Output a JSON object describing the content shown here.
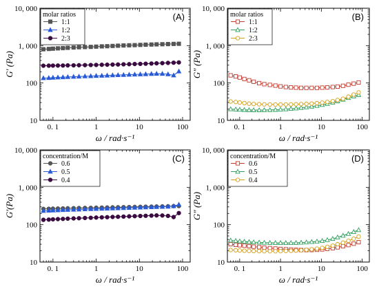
{
  "chart_data": [
    {
      "type": "line",
      "panel_label": "(A)",
      "ylabel": "G′ (Pa)",
      "xlabel": "ω / rad·s⁻¹",
      "xscale": "log",
      "yscale": "log",
      "xlim": [
        0.05,
        150
      ],
      "ylim": [
        10,
        10000
      ],
      "xticks": [
        0.1,
        1,
        10,
        100
      ],
      "xtick_labels": [
        "0. 1",
        "1",
        "10",
        "100"
      ],
      "yticks": [
        10,
        100,
        1000,
        10000
      ],
      "ytick_labels": [
        "10",
        "100",
        "1, 000",
        "10, 000"
      ],
      "legend_title": "molar ratios",
      "legend_position": "top-left",
      "series": [
        {
          "name": "1:1",
          "color": "#555555",
          "marker": "square",
          "filled": true,
          "x": [
            0.06,
            0.08,
            0.1,
            0.13,
            0.17,
            0.22,
            0.3,
            0.4,
            0.55,
            0.75,
            1,
            1.35,
            1.8,
            2.4,
            3.2,
            4.3,
            5.8,
            7.8,
            10.5,
            14,
            19,
            25,
            34,
            46,
            62,
            82
          ],
          "y": [
            800,
            815,
            830,
            845,
            860,
            875,
            890,
            905,
            915,
            925,
            940,
            955,
            965,
            980,
            995,
            1010,
            1020,
            1030,
            1045,
            1060,
            1070,
            1080,
            1090,
            1100,
            1110,
            1120
          ]
        },
        {
          "name": "1:2",
          "color": "#2a5bd7",
          "marker": "triangle",
          "filled": true,
          "x": [
            0.06,
            0.08,
            0.1,
            0.13,
            0.17,
            0.22,
            0.3,
            0.4,
            0.55,
            0.75,
            1,
            1.35,
            1.8,
            2.4,
            3.2,
            4.3,
            5.8,
            7.8,
            10.5,
            14,
            19,
            25,
            34,
            46,
            62,
            82
          ],
          "y": [
            135,
            137,
            139,
            141,
            143,
            145,
            147,
            149,
            151,
            153,
            155,
            157,
            159,
            161,
            163,
            165,
            167,
            169,
            171,
            173,
            175,
            177,
            176,
            172,
            160,
            205
          ]
        },
        {
          "name": "2:3",
          "color": "#3a0a40",
          "marker": "circle",
          "filled": true,
          "x": [
            0.06,
            0.08,
            0.1,
            0.13,
            0.17,
            0.22,
            0.3,
            0.4,
            0.55,
            0.75,
            1,
            1.35,
            1.8,
            2.4,
            3.2,
            4.3,
            5.8,
            7.8,
            10.5,
            14,
            19,
            25,
            34,
            46,
            62,
            82
          ],
          "y": [
            290,
            291,
            292,
            293,
            294,
            296,
            297,
            299,
            301,
            303,
            305,
            307,
            309,
            311,
            313,
            316,
            319,
            322,
            325,
            328,
            332,
            336,
            340,
            345,
            350,
            355
          ]
        }
      ]
    },
    {
      "type": "line",
      "panel_label": "(B)",
      "ylabel": "G″ (Pa)",
      "xlabel": "ω / rad·s⁻¹",
      "xscale": "log",
      "yscale": "log",
      "xlim": [
        0.05,
        150
      ],
      "ylim": [
        10,
        10000
      ],
      "xticks": [
        0.1,
        1,
        10,
        100
      ],
      "xtick_labels": [
        "0. 1",
        "1",
        "10",
        "100"
      ],
      "yticks": [
        10,
        100,
        1000,
        10000
      ],
      "ytick_labels": [
        "10",
        "100",
        "1, 000",
        "10, 000"
      ],
      "legend_title": "molar ratios",
      "legend_position": "top-left",
      "series": [
        {
          "name": "1:1",
          "color": "#c0392b",
          "marker": "square",
          "filled": false,
          "x": [
            0.06,
            0.08,
            0.1,
            0.13,
            0.17,
            0.22,
            0.3,
            0.4,
            0.55,
            0.75,
            1,
            1.35,
            1.8,
            2.4,
            3.2,
            4.3,
            5.8,
            7.8,
            10.5,
            14,
            19,
            25,
            34,
            46,
            62,
            82
          ],
          "y": [
            160,
            150,
            140,
            128,
            118,
            108,
            99,
            93,
            89,
            85,
            81,
            78,
            76,
            75,
            74,
            74,
            74,
            74,
            75,
            76,
            78,
            80,
            84,
            90,
            96,
            103
          ]
        },
        {
          "name": "1:2",
          "color": "#2e9e5b",
          "marker": "triangle",
          "filled": false,
          "x": [
            0.06,
            0.08,
            0.1,
            0.13,
            0.17,
            0.22,
            0.3,
            0.4,
            0.55,
            0.75,
            1,
            1.35,
            1.8,
            2.4,
            3.2,
            4.3,
            5.8,
            7.8,
            10.5,
            14,
            19,
            25,
            34,
            46,
            62,
            82
          ],
          "y": [
            20,
            19.7,
            19.4,
            19.1,
            18.9,
            18.8,
            18.8,
            18.9,
            19,
            19.2,
            19.5,
            19.9,
            20.4,
            21,
            21.7,
            22.5,
            23.5,
            24.6,
            26,
            27.8,
            30,
            32.8,
            36,
            40,
            44,
            48
          ]
        },
        {
          "name": "2:3",
          "color": "#d4a017",
          "marker": "circle",
          "filled": false,
          "x": [
            0.06,
            0.08,
            0.1,
            0.13,
            0.17,
            0.22,
            0.3,
            0.4,
            0.55,
            0.75,
            1,
            1.35,
            1.8,
            2.4,
            3.2,
            4.3,
            5.8,
            7.8,
            10.5,
            14,
            19,
            25,
            34,
            46,
            62,
            82
          ],
          "y": [
            32,
            31,
            30,
            29,
            28,
            27.5,
            27,
            26.8,
            26.6,
            26.5,
            26.5,
            26.6,
            26.8,
            27,
            27.3,
            27.7,
            28.2,
            28.9,
            29.8,
            31,
            32.8,
            35,
            38,
            43,
            49,
            56
          ]
        }
      ]
    },
    {
      "type": "line",
      "panel_label": "(C)",
      "ylabel": "G′(Pa)",
      "xlabel": "ω / rad·s⁻¹",
      "xscale": "log",
      "yscale": "log",
      "xlim": [
        0.05,
        150
      ],
      "ylim": [
        10,
        10000
      ],
      "xticks": [
        0.1,
        1,
        10,
        100
      ],
      "xtick_labels": [
        "0. 1",
        "1",
        "10",
        "100"
      ],
      "yticks": [
        10,
        100,
        1000,
        10000
      ],
      "ytick_labels": [
        "10",
        "100",
        "1, 000",
        "10, 000"
      ],
      "legend_title": "concentration/M",
      "legend_position": "top-left",
      "series": [
        {
          "name": "0.6",
          "color": "#555555",
          "marker": "circle",
          "filled": true,
          "x": [
            0.06,
            0.08,
            0.1,
            0.13,
            0.17,
            0.22,
            0.3,
            0.4,
            0.55,
            0.75,
            1,
            1.35,
            1.8,
            2.4,
            3.2,
            4.3,
            5.8,
            7.8,
            10.5,
            14,
            19,
            25,
            34,
            46,
            62,
            82
          ],
          "y": [
            265,
            267,
            269,
            271,
            273,
            275,
            277,
            279,
            281,
            283,
            285,
            287,
            289,
            291,
            293,
            295,
            297,
            299,
            301,
            303,
            305,
            307,
            309,
            311,
            313,
            315
          ]
        },
        {
          "name": "0.5",
          "color": "#2a5bd7",
          "marker": "triangle",
          "filled": true,
          "x": [
            0.06,
            0.08,
            0.1,
            0.13,
            0.17,
            0.22,
            0.3,
            0.4,
            0.55,
            0.75,
            1,
            1.35,
            1.8,
            2.4,
            3.2,
            4.3,
            5.8,
            7.8,
            10.5,
            14,
            19,
            25,
            34,
            46,
            62,
            82
          ],
          "y": [
            235,
            238,
            241,
            244,
            247,
            250,
            253,
            256,
            259,
            262,
            265,
            268,
            271,
            274,
            277,
            280,
            283,
            286,
            289,
            292,
            295,
            298,
            301,
            305,
            315,
            345
          ]
        },
        {
          "name": "0.4",
          "color": "#3a0a40",
          "marker": "circle",
          "filled": true,
          "x": [
            0.06,
            0.08,
            0.1,
            0.13,
            0.17,
            0.22,
            0.3,
            0.4,
            0.55,
            0.75,
            1,
            1.35,
            1.8,
            2.4,
            3.2,
            4.3,
            5.8,
            7.8,
            10.5,
            14,
            19,
            25,
            34,
            46,
            62,
            82
          ],
          "y": [
            135,
            137,
            139,
            141,
            143,
            145,
            147,
            149,
            151,
            153,
            155,
            157,
            159,
            161,
            163,
            165,
            167,
            169,
            171,
            173,
            175,
            177,
            176,
            172,
            160,
            205
          ]
        }
      ]
    },
    {
      "type": "line",
      "panel_label": "(D)",
      "ylabel": "G″ (Pa)",
      "xlabel": "ω / rad·s⁻¹",
      "xscale": "log",
      "yscale": "log",
      "xlim": [
        0.05,
        150
      ],
      "ylim": [
        10,
        10000
      ],
      "xticks": [
        0.1,
        1,
        10,
        100
      ],
      "xtick_labels": [
        "0. 1",
        "1",
        "10",
        "100"
      ],
      "yticks": [
        10,
        100,
        1000,
        10000
      ],
      "ytick_labels": [
        "10",
        "100",
        "1, 000",
        "10, 000"
      ],
      "legend_title": "concentration/M",
      "legend_position": "top-left",
      "series": [
        {
          "name": "0.6",
          "color": "#c0392b",
          "marker": "square",
          "filled": false,
          "x": [
            0.06,
            0.08,
            0.1,
            0.13,
            0.17,
            0.22,
            0.3,
            0.4,
            0.55,
            0.75,
            1,
            1.35,
            1.8,
            2.4,
            3.2,
            4.3,
            5.8,
            7.8,
            10.5,
            14,
            19,
            25,
            34,
            46,
            62,
            82
          ],
          "y": [
            30,
            29,
            28.2,
            27.4,
            26.6,
            25.8,
            25,
            24.3,
            23.6,
            23,
            22.4,
            21.9,
            21.5,
            21.2,
            21,
            20.9,
            21,
            21.3,
            21.8,
            22.5,
            23.5,
            24.8,
            26.5,
            28.5,
            31,
            34
          ]
        },
        {
          "name": "0.5",
          "color": "#2e9e5b",
          "marker": "triangle",
          "filled": false,
          "x": [
            0.06,
            0.08,
            0.1,
            0.13,
            0.17,
            0.22,
            0.3,
            0.4,
            0.55,
            0.75,
            1,
            1.35,
            1.8,
            2.4,
            3.2,
            4.3,
            5.8,
            7.8,
            10.5,
            14,
            19,
            25,
            34,
            46,
            62,
            82
          ],
          "y": [
            38,
            37,
            36,
            35.2,
            34.6,
            34,
            33.5,
            33.1,
            32.8,
            32.6,
            32.5,
            32.5,
            32.6,
            32.8,
            33.2,
            33.8,
            34.6,
            35.6,
            37,
            39,
            42,
            46,
            51,
            57,
            64,
            72
          ]
        },
        {
          "name": "0.4",
          "color": "#d4a017",
          "marker": "circle",
          "filled": false,
          "x": [
            0.06,
            0.08,
            0.1,
            0.13,
            0.17,
            0.22,
            0.3,
            0.4,
            0.55,
            0.75,
            1,
            1.35,
            1.8,
            2.4,
            3.2,
            4.3,
            5.8,
            7.8,
            10.5,
            14,
            19,
            25,
            34,
            46,
            62,
            82
          ],
          "y": [
            21,
            20.7,
            20.4,
            20.1,
            19.9,
            19.7,
            19.6,
            19.5,
            19.5,
            19.5,
            19.6,
            19.8,
            20,
            20.3,
            20.7,
            21.2,
            21.9,
            22.8,
            24,
            25.5,
            27.5,
            30,
            33,
            37,
            42,
            48
          ]
        }
      ]
    }
  ]
}
